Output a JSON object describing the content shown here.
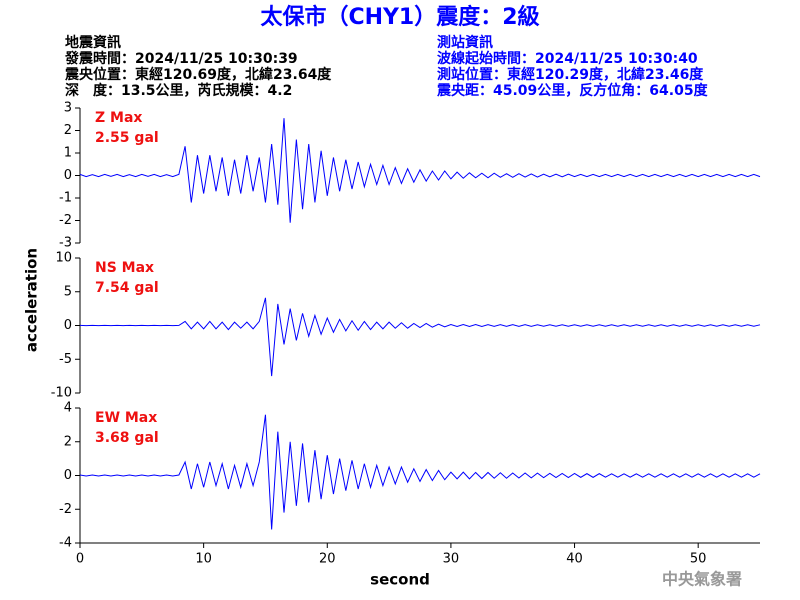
{
  "chart_data": {
    "type": "line",
    "title": "太保市（CHY1）震度：2級",
    "info_left": [
      "地震資訊",
      "發震時間：2024/11/25 10:30:39",
      "震央位置：東經120.69度，北緯23.64度",
      "深　度：13.5公里，芮氏規模：4.2"
    ],
    "info_right": [
      "測站資訊",
      "波線起始時間：2024/11/25 10:30:40",
      "測站位置：東經120.29度，北緯23.46度",
      "震央距：45.09公里，反方位角：64.05度"
    ],
    "xlabel": "second",
    "ylabel": "acceleration",
    "credit": "中央氣象署",
    "xlim": [
      0,
      55
    ],
    "xticks": [
      0,
      10,
      20,
      30,
      40,
      50
    ],
    "x": [
      0,
      0.5,
      1,
      1.5,
      2,
      2.5,
      3,
      3.5,
      4,
      4.5,
      5,
      5.5,
      6,
      6.5,
      7,
      7.5,
      8,
      8.5,
      9,
      9.5,
      10,
      10.5,
      11,
      11.5,
      12,
      12.5,
      13,
      13.5,
      14,
      14.5,
      15,
      15.5,
      16,
      16.5,
      17,
      17.5,
      18,
      18.5,
      19,
      19.5,
      20,
      20.5,
      21,
      21.5,
      22,
      22.5,
      23,
      23.5,
      24,
      24.5,
      25,
      25.5,
      26,
      26.5,
      27,
      27.5,
      28,
      28.5,
      29,
      29.5,
      30,
      30.5,
      31,
      31.5,
      32,
      32.5,
      33,
      33.5,
      34,
      34.5,
      35,
      35.5,
      36,
      36.5,
      37,
      37.5,
      38,
      38.5,
      39,
      39.5,
      40,
      40.5,
      41,
      41.5,
      42,
      42.5,
      43,
      43.5,
      44,
      44.5,
      45,
      45.5,
      46,
      46.5,
      47,
      47.5,
      48,
      48.5,
      49,
      49.5,
      50,
      50.5,
      51,
      51.5,
      52,
      52.5,
      53,
      53.5,
      54,
      54.5,
      55
    ],
    "series": [
      {
        "name": "Z Max",
        "max_label": "2.55 gal",
        "color": "#0000ff",
        "ylim": [
          -3,
          3
        ],
        "yticks": [
          -3,
          -2,
          -1,
          0,
          1,
          2,
          3
        ],
        "values": [
          0.05,
          -0.05,
          0.04,
          -0.05,
          0.05,
          -0.04,
          0.05,
          -0.05,
          0.04,
          -0.05,
          0.05,
          -0.04,
          0.05,
          -0.05,
          0.04,
          -0.05,
          0.05,
          1.3,
          -1.2,
          0.9,
          -0.8,
          0.9,
          -0.7,
          0.8,
          -0.9,
          0.7,
          -0.8,
          0.9,
          -0.7,
          0.8,
          -1.2,
          1.4,
          -1.3,
          2.55,
          -2.1,
          1.6,
          -1.5,
          1.4,
          -1.2,
          1.1,
          -0.9,
          0.8,
          -0.7,
          0.7,
          -0.6,
          0.6,
          -0.5,
          0.5,
          -0.4,
          0.45,
          -0.4,
          0.35,
          -0.35,
          0.3,
          -0.3,
          0.25,
          -0.25,
          0.2,
          -0.2,
          0.2,
          -0.15,
          0.15,
          -0.12,
          0.12,
          -0.1,
          0.1,
          -0.1,
          0.1,
          -0.08,
          0.08,
          -0.08,
          0.08,
          -0.07,
          0.07,
          -0.07,
          0.06,
          -0.06,
          0.06,
          -0.06,
          0.06,
          -0.05,
          0.05,
          -0.05,
          0.05,
          -0.05,
          0.05,
          -0.05,
          0.05,
          -0.05,
          0.05,
          -0.05,
          0.05,
          -0.05,
          0.05,
          -0.05,
          0.05,
          -0.05,
          0.05,
          -0.05,
          0.05,
          -0.05,
          0.05,
          -0.05,
          0.05,
          -0.05,
          0.05,
          -0.05,
          0.05,
          -0.05,
          0.05,
          -0.05
        ]
      },
      {
        "name": "NS Max",
        "max_label": "7.54 gal",
        "color": "#0000ff",
        "ylim": [
          -10,
          10
        ],
        "yticks": [
          -10,
          -5,
          0,
          5,
          10
        ],
        "values": [
          0.02,
          -0.02,
          0.02,
          -0.02,
          0.02,
          -0.02,
          0.02,
          -0.02,
          0.02,
          -0.02,
          0.02,
          -0.02,
          0.02,
          -0.02,
          0.02,
          -0.02,
          0.02,
          0.6,
          -0.5,
          0.5,
          -0.5,
          0.6,
          -0.5,
          0.5,
          -0.6,
          0.5,
          -0.4,
          0.5,
          -0.5,
          0.6,
          4.1,
          -7.5,
          3.2,
          -2.8,
          2.5,
          -2.2,
          1.8,
          -1.6,
          1.5,
          -1.3,
          1.1,
          -1.0,
          0.9,
          -0.8,
          0.7,
          -0.7,
          0.6,
          -0.6,
          0.5,
          -0.5,
          0.5,
          -0.4,
          0.4,
          -0.4,
          0.3,
          -0.3,
          0.3,
          -0.25,
          0.2,
          -0.2,
          0.15,
          -0.15,
          0.15,
          -0.15,
          0.15,
          -0.15,
          0.12,
          -0.12,
          0.12,
          -0.12,
          0.12,
          -0.12,
          0.12,
          -0.12,
          0.1,
          -0.1,
          0.1,
          -0.1,
          0.1,
          -0.1,
          0.1,
          -0.1,
          0.1,
          -0.1,
          0.1,
          -0.1,
          0.1,
          -0.1,
          0.1,
          -0.1,
          0.1,
          -0.1,
          0.1,
          -0.1,
          0.1,
          -0.1,
          0.1,
          -0.1,
          0.1,
          -0.1,
          0.1,
          -0.1,
          0.1,
          -0.1,
          0.1,
          -0.1,
          0.1,
          -0.1,
          0.1,
          -0.1,
          0.1
        ]
      },
      {
        "name": "EW Max",
        "max_label": "3.68 gal",
        "color": "#0000ff",
        "ylim": [
          -4,
          4
        ],
        "yticks": [
          -4,
          -2,
          0,
          2,
          4
        ],
        "values": [
          0.03,
          -0.03,
          0.03,
          -0.03,
          0.03,
          -0.03,
          0.03,
          -0.03,
          0.03,
          -0.03,
          0.03,
          -0.03,
          0.03,
          -0.03,
          0.03,
          -0.03,
          0.03,
          0.8,
          -0.8,
          0.7,
          -0.7,
          0.8,
          -0.6,
          0.7,
          -0.8,
          0.6,
          -0.7,
          0.7,
          -0.6,
          0.8,
          3.6,
          -3.2,
          2.6,
          -2.2,
          2.0,
          -1.8,
          1.9,
          -1.6,
          1.5,
          -1.4,
          1.2,
          -1.1,
          1.0,
          -0.9,
          0.9,
          -0.8,
          0.7,
          -0.7,
          0.6,
          -0.6,
          0.5,
          -0.5,
          0.5,
          -0.4,
          0.4,
          -0.35,
          0.35,
          -0.3,
          0.3,
          -0.25,
          0.2,
          -0.2,
          0.2,
          -0.2,
          0.18,
          -0.18,
          0.18,
          -0.16,
          0.16,
          -0.16,
          0.15,
          -0.15,
          0.15,
          -0.14,
          0.14,
          -0.13,
          0.13,
          -0.12,
          0.12,
          -0.12,
          0.12,
          -0.11,
          0.11,
          -0.11,
          0.11,
          -0.1,
          0.1,
          -0.1,
          0.1,
          -0.1,
          0.1,
          -0.1,
          0.1,
          -0.1,
          0.1,
          -0.1,
          0.1,
          -0.1,
          0.1,
          -0.1,
          0.1,
          -0.1,
          0.1,
          -0.1,
          0.1,
          -0.1,
          0.1,
          -0.1,
          0.1,
          -0.1,
          0.1
        ]
      }
    ]
  }
}
